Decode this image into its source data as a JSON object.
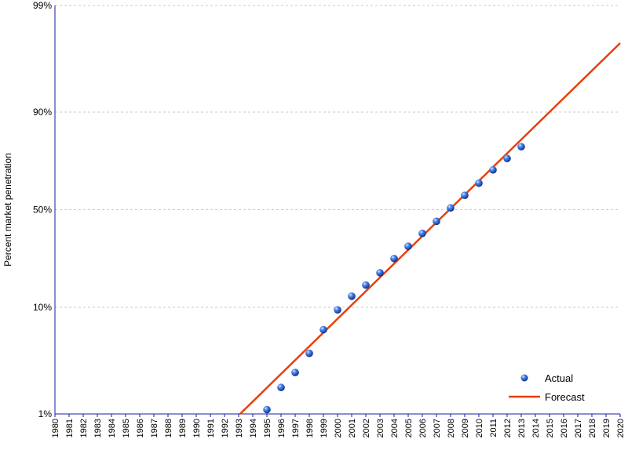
{
  "chart_data": {
    "type": "scatter",
    "title": "",
    "xlabel": "",
    "ylabel": "Percent market penetration",
    "y_scale": "logit",
    "x_categories": [
      "1980",
      "1981",
      "1982",
      "1983",
      "1984",
      "1985",
      "1986",
      "1987",
      "1988",
      "1989",
      "1990",
      "1991",
      "1992",
      "1993",
      "1994",
      "1995",
      "1996",
      "1997",
      "1998",
      "1999",
      "2000",
      "2001",
      "2002",
      "2003",
      "2004",
      "2005",
      "2006",
      "2007",
      "2008",
      "2009",
      "2010",
      "2011",
      "2012",
      "2013",
      "2014",
      "2015",
      "2016",
      "2017",
      "2018",
      "2019",
      "2020"
    ],
    "y_ticks": [
      {
        "value": 1,
        "label": "1%"
      },
      {
        "value": 10,
        "label": "10%"
      },
      {
        "value": 50,
        "label": "50%"
      },
      {
        "value": 90,
        "label": "90%"
      },
      {
        "value": 99,
        "label": "99%"
      }
    ],
    "ylim": [
      1,
      99
    ],
    "grid": "horizontal",
    "legend_position": "bottom-right",
    "series": [
      {
        "name": "Actual",
        "kind": "points",
        "color": "#1f5fd0",
        "points": [
          {
            "x": 1995,
            "y": 1.1
          },
          {
            "x": 1996,
            "y": 1.8
          },
          {
            "x": 1997,
            "y": 2.5
          },
          {
            "x": 1998,
            "y": 3.8
          },
          {
            "x": 1999,
            "y": 6.3
          },
          {
            "x": 2000,
            "y": 9.5
          },
          {
            "x": 2001,
            "y": 12.5
          },
          {
            "x": 2002,
            "y": 15.5
          },
          {
            "x": 2003,
            "y": 19.5
          },
          {
            "x": 2004,
            "y": 25.0
          },
          {
            "x": 2005,
            "y": 30.5
          },
          {
            "x": 2006,
            "y": 37.0
          },
          {
            "x": 2007,
            "y": 43.5
          },
          {
            "x": 2008,
            "y": 51.0
          },
          {
            "x": 2009,
            "y": 58.0
          },
          {
            "x": 2010,
            "y": 64.5
          },
          {
            "x": 2011,
            "y": 71.0
          },
          {
            "x": 2012,
            "y": 76.0
          },
          {
            "x": 2013,
            "y": 80.5
          }
        ]
      },
      {
        "name": "Forecast",
        "kind": "line",
        "color": "#e8400c",
        "points": [
          {
            "x": 1993.1,
            "y": 1.0
          },
          {
            "x": 2020,
            "y": 97.7
          }
        ]
      }
    ]
  }
}
